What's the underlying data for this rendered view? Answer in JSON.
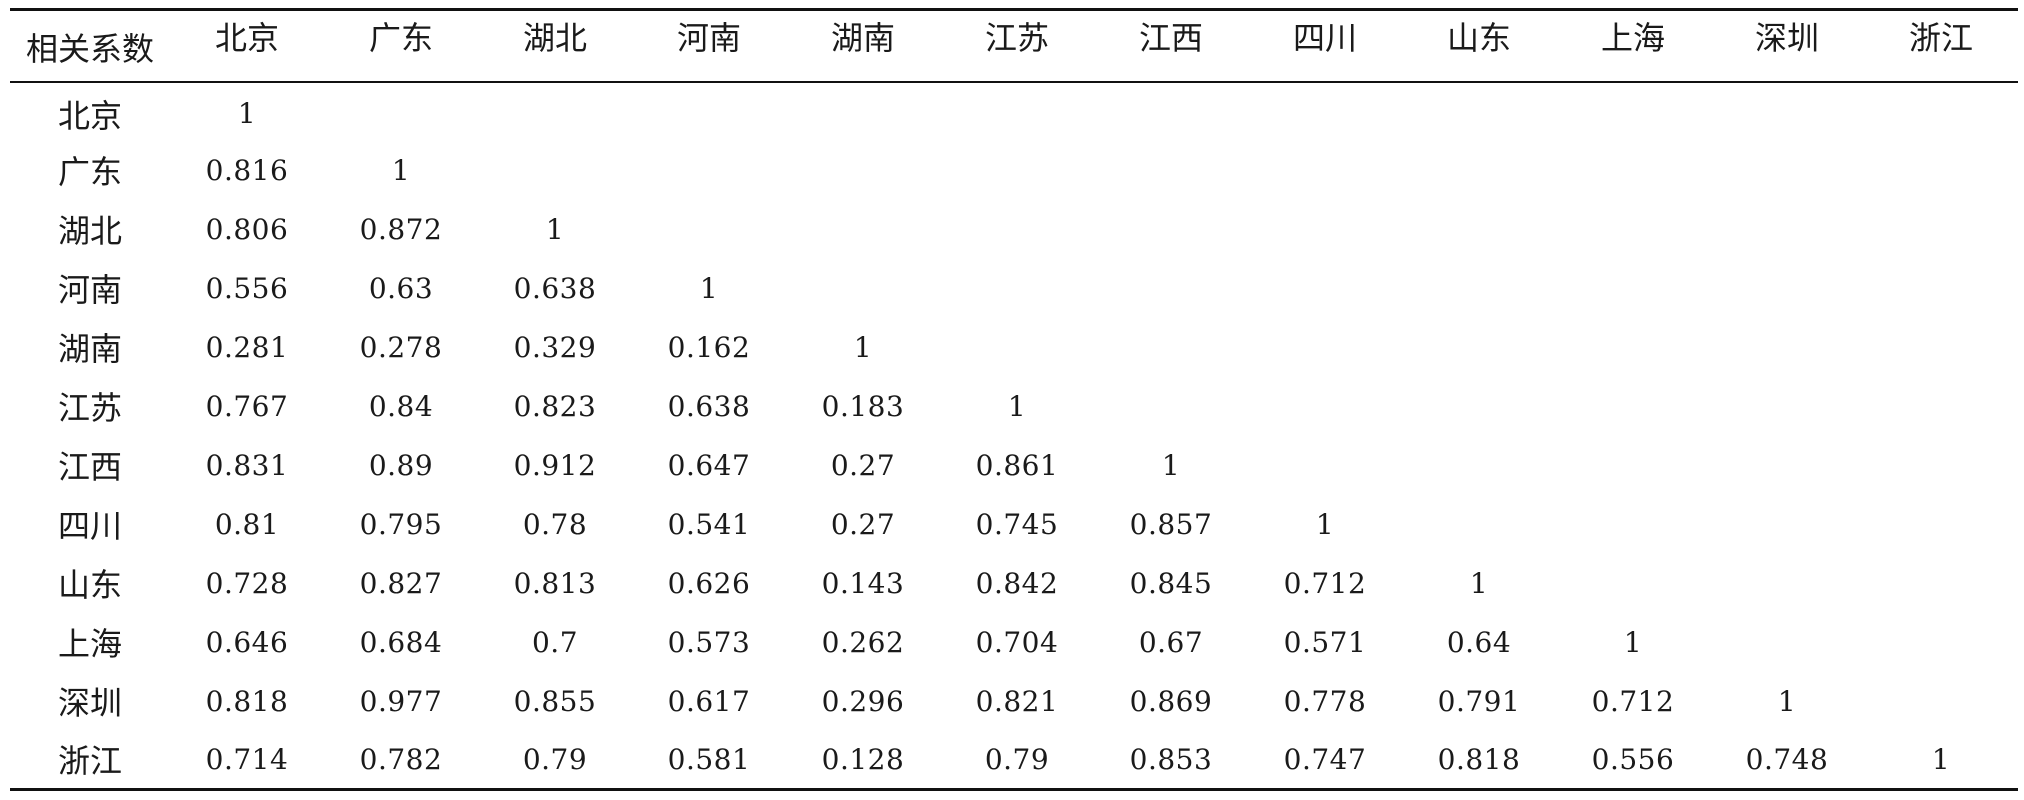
{
  "table": {
    "corner_label": "相关系数",
    "columns": [
      "北京",
      "广东",
      "湖北",
      "河南",
      "湖南",
      "江苏",
      "江西",
      "四川",
      "山东",
      "上海",
      "深圳",
      "浙江"
    ],
    "rows": [
      {
        "label": "北京",
        "values": [
          "1",
          "",
          "",
          "",
          "",
          "",
          "",
          "",
          "",
          "",
          "",
          ""
        ]
      },
      {
        "label": "广东",
        "values": [
          "0.816",
          "1",
          "",
          "",
          "",
          "",
          "",
          "",
          "",
          "",
          "",
          ""
        ]
      },
      {
        "label": "湖北",
        "values": [
          "0.806",
          "0.872",
          "1",
          "",
          "",
          "",
          "",
          "",
          "",
          "",
          "",
          ""
        ]
      },
      {
        "label": "河南",
        "values": [
          "0.556",
          "0.63",
          "0.638",
          "1",
          "",
          "",
          "",
          "",
          "",
          "",
          "",
          ""
        ]
      },
      {
        "label": "湖南",
        "values": [
          "0.281",
          "0.278",
          "0.329",
          "0.162",
          "1",
          "",
          "",
          "",
          "",
          "",
          "",
          ""
        ]
      },
      {
        "label": "江苏",
        "values": [
          "0.767",
          "0.84",
          "0.823",
          "0.638",
          "0.183",
          "1",
          "",
          "",
          "",
          "",
          "",
          ""
        ]
      },
      {
        "label": "江西",
        "values": [
          "0.831",
          "0.89",
          "0.912",
          "0.647",
          "0.27",
          "0.861",
          "1",
          "",
          "",
          "",
          "",
          ""
        ]
      },
      {
        "label": "四川",
        "values": [
          "0.81",
          "0.795",
          "0.78",
          "0.541",
          "0.27",
          "0.745",
          "0.857",
          "1",
          "",
          "",
          "",
          ""
        ]
      },
      {
        "label": "山东",
        "values": [
          "0.728",
          "0.827",
          "0.813",
          "0.626",
          "0.143",
          "0.842",
          "0.845",
          "0.712",
          "1",
          "",
          "",
          ""
        ]
      },
      {
        "label": "上海",
        "values": [
          "0.646",
          "0.684",
          "0.7",
          "0.573",
          "0.262",
          "0.704",
          "0.67",
          "0.571",
          "0.64",
          "1",
          "",
          ""
        ]
      },
      {
        "label": "深圳",
        "values": [
          "0.818",
          "0.977",
          "0.855",
          "0.617",
          "0.296",
          "0.821",
          "0.869",
          "0.778",
          "0.791",
          "0.712",
          "1",
          ""
        ]
      },
      {
        "label": "浙江",
        "values": [
          "0.714",
          "0.782",
          "0.79",
          "0.581",
          "0.128",
          "0.79",
          "0.853",
          "0.747",
          "0.818",
          "0.556",
          "0.748",
          "1"
        ]
      }
    ]
  }
}
